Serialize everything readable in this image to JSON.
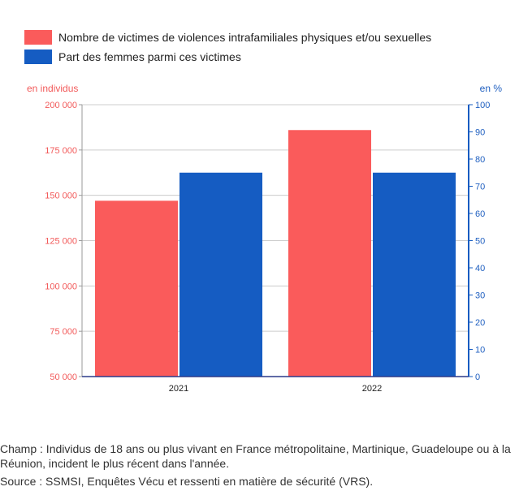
{
  "colors": {
    "series1": "#fa5b5b",
    "series2": "#155cc2",
    "left_axis_text": "#f25a5a",
    "right_axis_text": "#1f5fc0",
    "grid": "#cccccc"
  },
  "chart_data": {
    "type": "bar",
    "categories": [
      "2021",
      "2022"
    ],
    "series": [
      {
        "name": "Nombre de victimes de violences intrafamiliales physiques et/ou sexuelles",
        "values": [
          147000,
          186000
        ],
        "axis": "left"
      },
      {
        "name": "Part des femmes parmi ces victimes",
        "values": [
          75,
          75
        ],
        "axis": "right"
      }
    ],
    "y_left": {
      "label": "en individus",
      "min": 50000,
      "max": 200000,
      "ticks": [
        "50 000",
        "75 000",
        "100 000",
        "125 000",
        "150 000",
        "175 000",
        "200 000"
      ],
      "tick_values": [
        50000,
        75000,
        100000,
        125000,
        150000,
        175000,
        200000
      ]
    },
    "y_right": {
      "label": "en %",
      "min": 0,
      "max": 100,
      "ticks": [
        "0",
        "10",
        "20",
        "30",
        "40",
        "50",
        "60",
        "70",
        "80",
        "90",
        "100"
      ],
      "tick_values": [
        0,
        10,
        20,
        30,
        40,
        50,
        60,
        70,
        80,
        90,
        100
      ]
    },
    "legend_position": "top-left",
    "grid": true
  },
  "notes": {
    "champ": "Champ : Individus de 18 ans ou plus vivant en France métropolitaine, Martinique, Guadeloupe ou à la Réunion, incident le plus récent dans l'année.",
    "source": "Source : SSMSI, Enquêtes Vécu et ressenti en matière de sécurité (VRS)."
  }
}
